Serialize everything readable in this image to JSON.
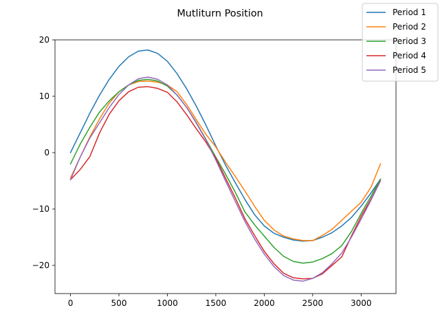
{
  "chart_data": {
    "type": "line",
    "title": "Mutliturn Position",
    "xlabel": "",
    "ylabel": "",
    "xlim": [
      -160,
      3360
    ],
    "ylim": [
      -25,
      20
    ],
    "xticks": [
      0,
      500,
      1000,
      1500,
      2000,
      2500,
      3000
    ],
    "yticks": [
      -20,
      -10,
      0,
      10,
      20
    ],
    "grid": false,
    "legend_position": "top-right",
    "x": [
      0,
      100,
      200,
      300,
      400,
      500,
      600,
      700,
      800,
      900,
      1000,
      1100,
      1200,
      1300,
      1400,
      1500,
      1600,
      1700,
      1800,
      1900,
      2000,
      2100,
      2200,
      2300,
      2400,
      2500,
      2600,
      2700,
      2800,
      2900,
      3000,
      3100,
      3200
    ],
    "series": [
      {
        "name": "Period 1",
        "color": "#1f77b4",
        "values": [
          0.0,
          3.5,
          7.0,
          10.2,
          13.0,
          15.3,
          17.0,
          18.0,
          18.2,
          17.6,
          16.2,
          14.0,
          11.3,
          8.2,
          4.8,
          1.2,
          -2.2,
          -5.3,
          -8.3,
          -11.0,
          -13.0,
          -14.3,
          -15.0,
          -15.5,
          -15.7,
          -15.6,
          -15.0,
          -14.2,
          -13.0,
          -11.5,
          -9.5,
          -7.2,
          -4.7
        ]
      },
      {
        "name": "Period 2",
        "color": "#ff7f0e",
        "values": [
          -4.5,
          -0.8,
          2.8,
          6.0,
          8.8,
          10.8,
          12.0,
          12.6,
          12.7,
          12.5,
          12.0,
          10.8,
          8.5,
          5.8,
          3.2,
          1.0,
          -1.7,
          -4.2,
          -6.8,
          -9.5,
          -12.0,
          -13.7,
          -14.8,
          -15.3,
          -15.6,
          -15.6,
          -14.7,
          -13.6,
          -12.0,
          -10.4,
          -8.8,
          -6.2,
          -2.0
        ]
      },
      {
        "name": "Period 3",
        "color": "#2ca02c",
        "values": [
          -2.0,
          1.5,
          4.5,
          7.2,
          9.2,
          10.8,
          12.0,
          12.8,
          13.0,
          12.7,
          11.8,
          10.2,
          8.0,
          5.3,
          2.3,
          -0.8,
          -3.8,
          -7.0,
          -10.5,
          -12.8,
          -14.8,
          -16.8,
          -18.4,
          -19.3,
          -19.6,
          -19.4,
          -18.8,
          -17.9,
          -16.5,
          -14.0,
          -10.8,
          -7.8,
          -4.7
        ]
      },
      {
        "name": "Period 4",
        "color": "#d62728",
        "values": [
          -4.8,
          -3.0,
          -0.7,
          3.5,
          6.8,
          9.2,
          10.8,
          11.6,
          11.7,
          11.4,
          10.7,
          9.0,
          6.7,
          4.2,
          1.8,
          -1.0,
          -4.5,
          -8.0,
          -11.7,
          -14.7,
          -17.5,
          -19.7,
          -21.4,
          -22.2,
          -22.4,
          -22.3,
          -21.5,
          -20.0,
          -18.5,
          -14.8,
          -11.3,
          -8.3,
          -5.0
        ]
      },
      {
        "name": "Period 5",
        "color": "#9467bd",
        "values": [
          -4.8,
          -0.8,
          2.6,
          5.3,
          8.0,
          10.3,
          12.0,
          13.1,
          13.4,
          13.0,
          12.0,
          10.2,
          8.0,
          5.2,
          2.2,
          -1.3,
          -5.0,
          -8.6,
          -12.2,
          -15.3,
          -18.0,
          -20.2,
          -21.8,
          -22.6,
          -22.8,
          -22.3,
          -21.3,
          -19.7,
          -17.8,
          -15.0,
          -11.8,
          -8.5,
          -5.0
        ]
      }
    ]
  }
}
